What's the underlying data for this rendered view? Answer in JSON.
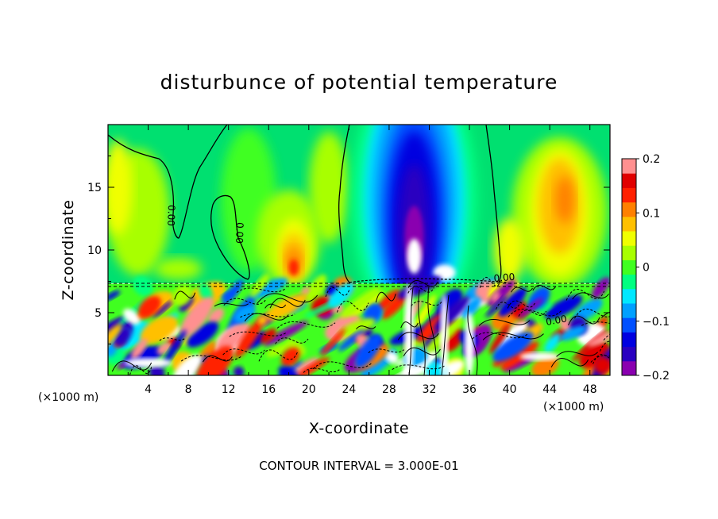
{
  "chart_data": {
    "type": "heatmap",
    "title": "disturbunce of potential temperature",
    "xlabel": "X-coordinate",
    "ylabel": "Z-coordinate",
    "x_unit": "(×1000 m)",
    "y_unit": "(×1000 m)",
    "xlim": [
      0,
      50
    ],
    "ylim": [
      0,
      20
    ],
    "x_ticks": [
      4,
      8,
      12,
      16,
      20,
      24,
      28,
      32,
      36,
      40,
      44,
      48
    ],
    "y_ticks": [
      5,
      10,
      15
    ],
    "contour_interval_text": "CONTOUR INTERVAL = 3.000E-01",
    "contour_labels": [
      "0.00",
      "0.00",
      "0.00",
      "0.00"
    ],
    "colorbar": {
      "range": [
        -0.2,
        0.2
      ],
      "tick_labels": [
        "0.2",
        "0.1",
        "0",
        "−0.1",
        "−0.2"
      ],
      "tick_values": [
        0.2,
        0.1,
        0,
        -0.1,
        -0.2
      ],
      "colors": [
        "#8a00b0",
        "#2a00c0",
        "#0000e0",
        "#0050ff",
        "#00a0ff",
        "#00e8ff",
        "#00ff80",
        "#40ff20",
        "#a8ff00",
        "#f0ff00",
        "#ffc000",
        "#ff8000",
        "#ff2000",
        "#e00000",
        "#ff9090"
      ]
    },
    "grid": false
  }
}
